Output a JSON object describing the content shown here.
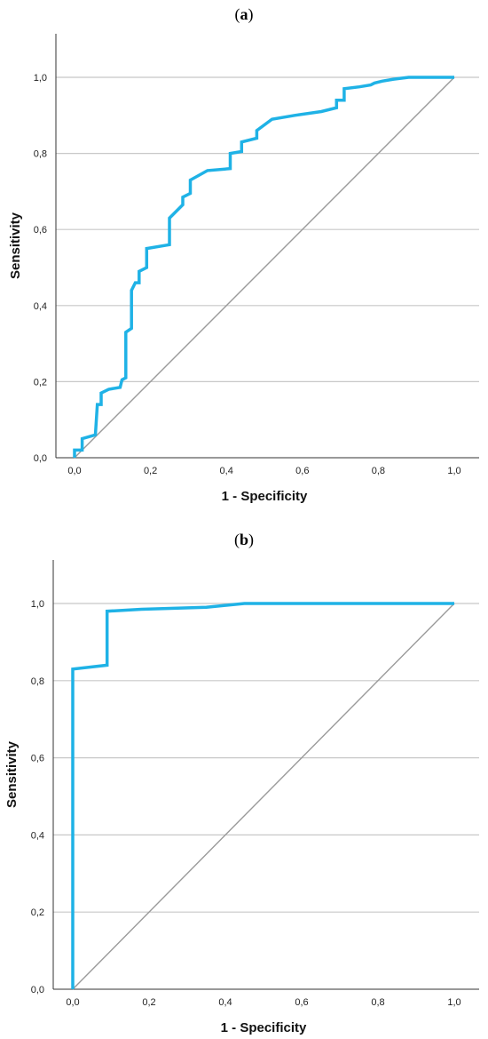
{
  "chart_data": [
    {
      "type": "line",
      "panel_label": "(a)",
      "xlabel": "1 - Specificity",
      "ylabel": "Sensitivity",
      "xlim": [
        0,
        1
      ],
      "ylim": [
        0,
        1.1
      ],
      "x_ticks": [
        "0,0",
        "0,2",
        "0,4",
        "0,6",
        "0,8",
        "1,0"
      ],
      "y_ticks": [
        "0,0",
        "0,2",
        "0,4",
        "0,6",
        "0,8",
        "1,0"
      ],
      "grid": "horizontal",
      "reference_line": [
        [
          0,
          0
        ],
        [
          1,
          1
        ]
      ],
      "series": [
        {
          "color": "#1fb2e6",
          "points": [
            [
              0,
              0
            ],
            [
              0,
              0.02
            ],
            [
              0.02,
              0.02
            ],
            [
              0.02,
              0.05
            ],
            [
              0.055,
              0.06
            ],
            [
              0.06,
              0.14
            ],
            [
              0.07,
              0.14
            ],
            [
              0.07,
              0.17
            ],
            [
              0.09,
              0.18
            ],
            [
              0.12,
              0.185
            ],
            [
              0.125,
              0.205
            ],
            [
              0.135,
              0.21
            ],
            [
              0.135,
              0.33
            ],
            [
              0.15,
              0.34
            ],
            [
              0.15,
              0.44
            ],
            [
              0.16,
              0.46
            ],
            [
              0.17,
              0.46
            ],
            [
              0.17,
              0.49
            ],
            [
              0.19,
              0.5
            ],
            [
              0.19,
              0.55
            ],
            [
              0.25,
              0.56
            ],
            [
              0.25,
              0.63
            ],
            [
              0.285,
              0.665
            ],
            [
              0.285,
              0.685
            ],
            [
              0.305,
              0.695
            ],
            [
              0.305,
              0.73
            ],
            [
              0.35,
              0.755
            ],
            [
              0.41,
              0.76
            ],
            [
              0.41,
              0.8
            ],
            [
              0.44,
              0.805
            ],
            [
              0.44,
              0.83
            ],
            [
              0.48,
              0.84
            ],
            [
              0.48,
              0.86
            ],
            [
              0.52,
              0.89
            ],
            [
              0.58,
              0.9
            ],
            [
              0.65,
              0.91
            ],
            [
              0.69,
              0.92
            ],
            [
              0.69,
              0.94
            ],
            [
              0.71,
              0.94
            ],
            [
              0.71,
              0.97
            ],
            [
              0.75,
              0.975
            ],
            [
              0.78,
              0.98
            ],
            [
              0.79,
              0.985
            ],
            [
              0.81,
              0.99
            ],
            [
              0.84,
              0.995
            ],
            [
              0.88,
              1.0
            ],
            [
              1.0,
              1.0
            ]
          ]
        }
      ]
    },
    {
      "type": "line",
      "panel_label": "(b)",
      "xlabel": "1 - Specificity",
      "ylabel": "Sensitivity",
      "xlim": [
        0,
        1
      ],
      "ylim": [
        0,
        1.1
      ],
      "x_ticks": [
        "0,0",
        "0,2",
        "0,4",
        "0,6",
        "0,8",
        "1,0"
      ],
      "y_ticks": [
        "0,0",
        "0,2",
        "0,4",
        "0,6",
        "0,8",
        "1,0"
      ],
      "grid": "horizontal",
      "reference_line": [
        [
          0,
          0
        ],
        [
          1,
          1
        ]
      ],
      "series": [
        {
          "color": "#1fb2e6",
          "points": [
            [
              0,
              0
            ],
            [
              0,
              0.83
            ],
            [
              0.09,
              0.84
            ],
            [
              0.09,
              0.98
            ],
            [
              0.18,
              0.985
            ],
            [
              0.35,
              0.99
            ],
            [
              0.45,
              1.0
            ],
            [
              1.0,
              1.0
            ]
          ]
        }
      ]
    }
  ]
}
